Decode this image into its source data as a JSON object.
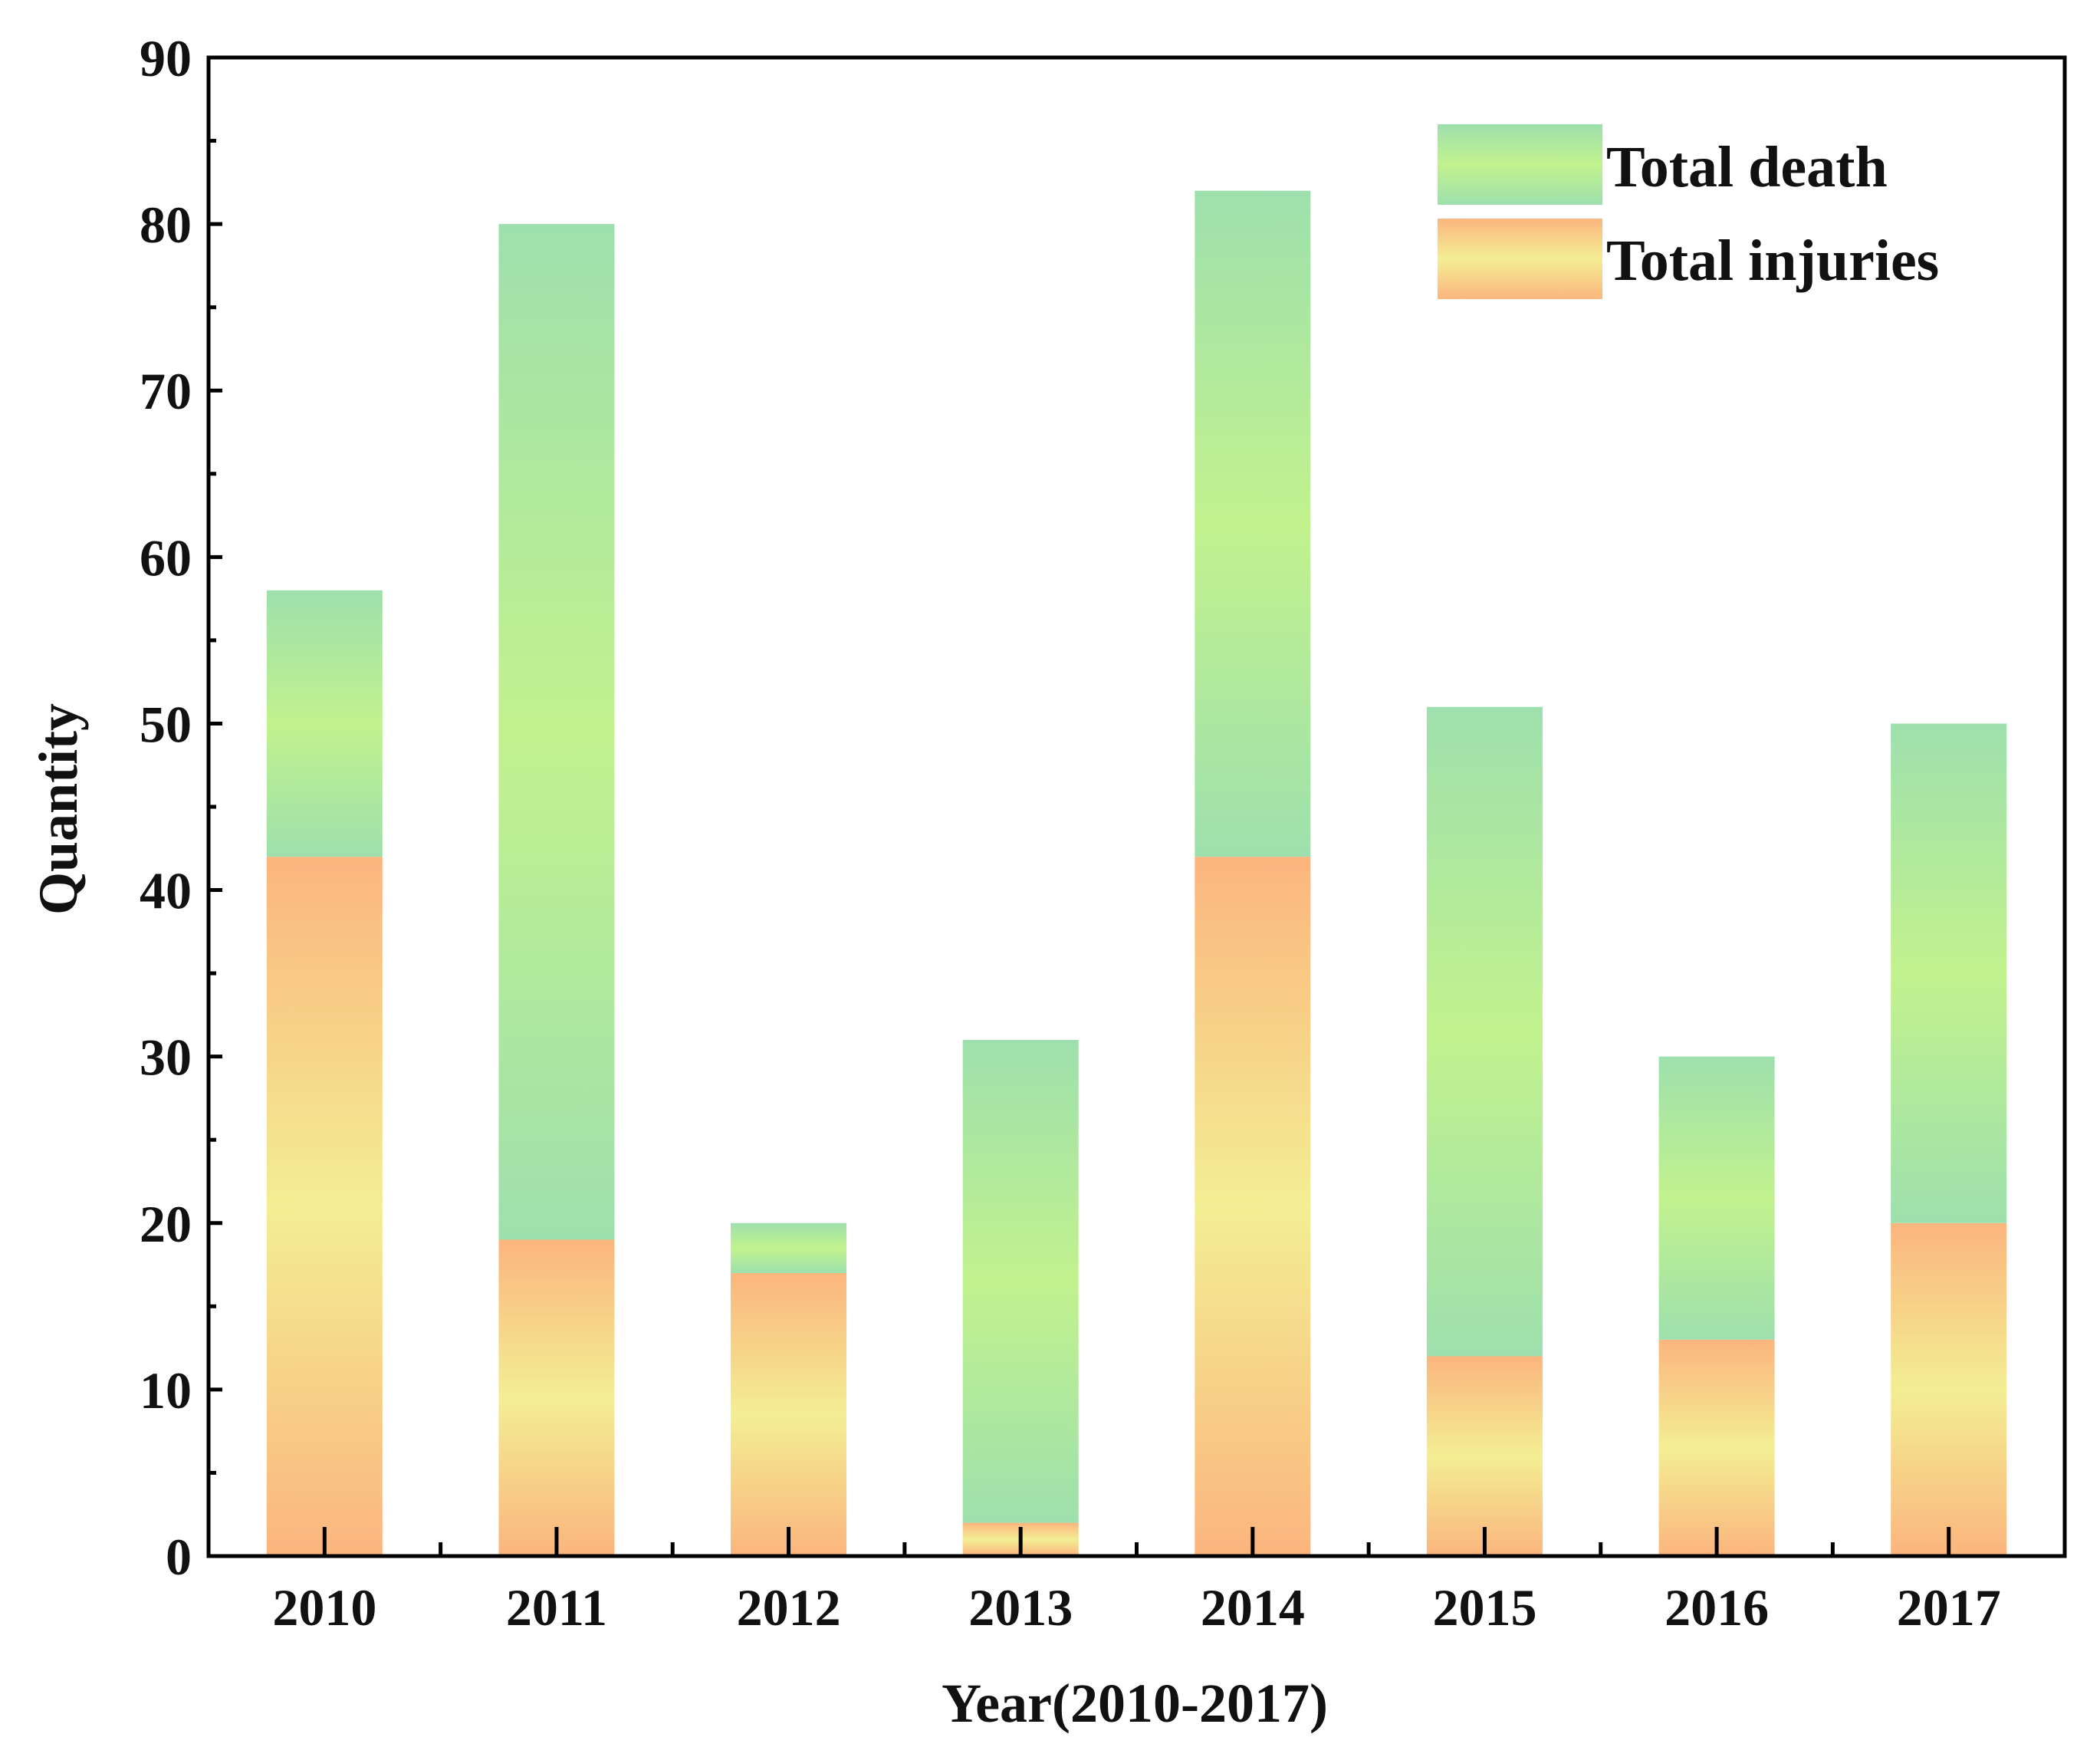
{
  "chart_data": {
    "type": "bar",
    "stacked": true,
    "categories": [
      "2010",
      "2011",
      "2012",
      "2013",
      "2014",
      "2015",
      "2016",
      "2017"
    ],
    "series": [
      {
        "name": "Total injuries",
        "values": [
          42,
          19,
          17,
          2,
          42,
          12,
          13,
          20
        ]
      },
      {
        "name": "Total death",
        "values": [
          16,
          61,
          3,
          29,
          40,
          39,
          17,
          30
        ]
      }
    ],
    "totals": [
      58,
      80,
      20,
      31,
      82,
      51,
      30,
      50
    ],
    "title": "",
    "xlabel": "Year(2010-2017)",
    "ylabel": "Quantity",
    "ylim": [
      0,
      90
    ],
    "yticks": [
      0,
      10,
      20,
      30,
      40,
      50,
      60,
      70,
      80,
      90
    ],
    "grid": false,
    "legend_position": "top-right",
    "legend": [
      "Total death",
      "Total injuries"
    ],
    "colors": {
      "death_edge": "#9ee0ad",
      "death_center": "#c2f28e",
      "injury_edge": "#fbb57e",
      "injury_center": "#f3ee93"
    }
  }
}
